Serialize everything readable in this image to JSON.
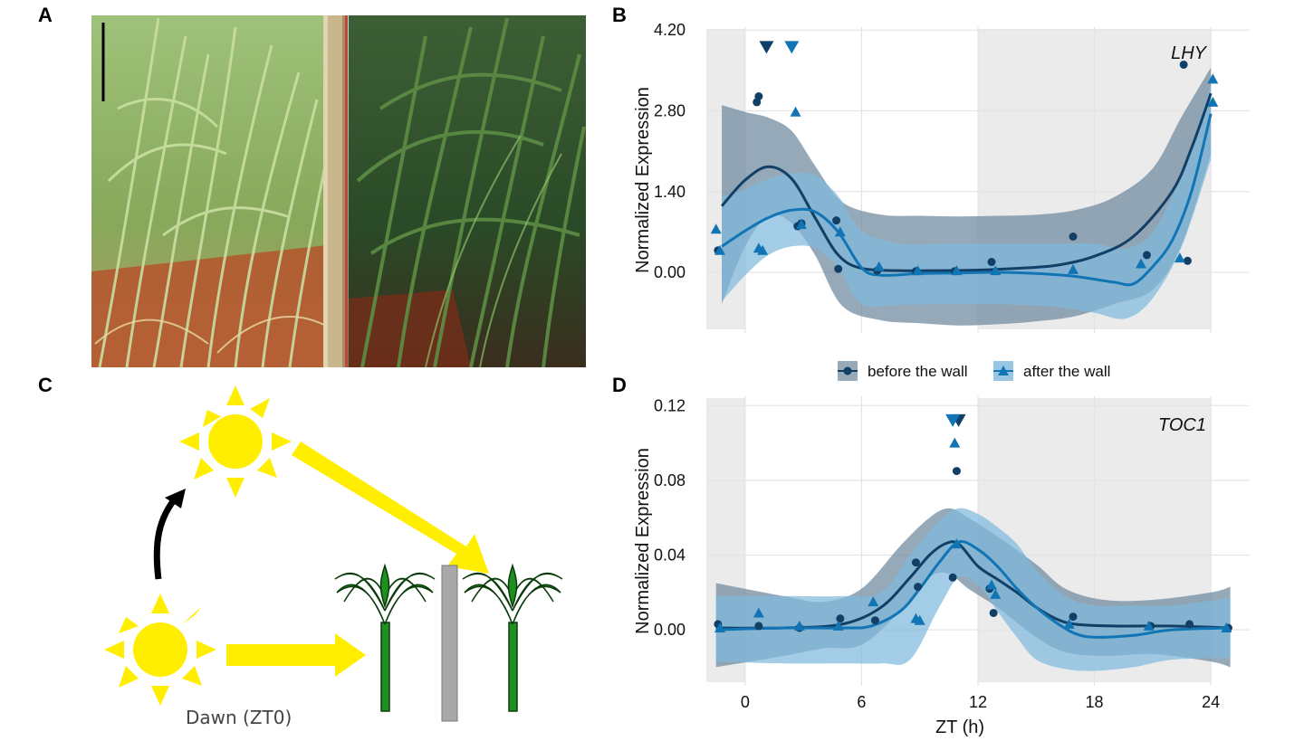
{
  "panels": {
    "a": "A",
    "b": "B",
    "c": "C",
    "d": "D"
  },
  "illustration": {
    "dawn_label": "Dawn (ZT0)"
  },
  "legend": {
    "items": [
      "before the wall",
      "after the wall"
    ]
  },
  "colors": {
    "before": "#123f66",
    "after": "#1175b5",
    "band_before": "#6d889e",
    "band_after": "#7fb8dc",
    "shade": "#ebebeb",
    "sun": "#ffee00",
    "plant": "#1f8f1f",
    "wall": "#a8a8a8"
  },
  "chart_data": [
    {
      "type": "scatter",
      "gene": "LHY",
      "xlabel": "",
      "ylabel": "Normalized Expression",
      "xlim": [
        -2,
        26
      ],
      "ylim": [
        -1.05,
        4.25
      ],
      "xticks": [
        0,
        6,
        12,
        18,
        24
      ],
      "yticks": [
        "0.00",
        "1.40",
        "2.80",
        "4.20"
      ],
      "series": [
        {
          "name": "before the wall",
          "points": [
            [
              -1.4,
              0.38
            ],
            [
              0.6,
              2.95
            ],
            [
              0.7,
              3.05
            ],
            [
              2.7,
              0.8
            ],
            [
              2.9,
              0.85
            ],
            [
              4.7,
              0.9
            ],
            [
              4.8,
              0.06
            ],
            [
              6.8,
              0.03
            ],
            [
              8.8,
              0.02
            ],
            [
              10.8,
              0.02
            ],
            [
              12.7,
              0.18
            ],
            [
              16.9,
              0.62
            ],
            [
              20.7,
              0.3
            ],
            [
              22.6,
              3.6
            ],
            [
              22.8,
              0.2
            ]
          ],
          "censored": [
            [
              1.1,
              3.9
            ]
          ],
          "fit": [
            [
              -1.2,
              1.15
            ],
            [
              0,
              1.6
            ],
            [
              1.2,
              1.83
            ],
            [
              2.4,
              1.62
            ],
            [
              3.6,
              0.95
            ],
            [
              4.8,
              0.3
            ],
            [
              6,
              0.07
            ],
            [
              8,
              0.03
            ],
            [
              10,
              0.03
            ],
            [
              12,
              0.04
            ],
            [
              14,
              0.07
            ],
            [
              16,
              0.12
            ],
            [
              18,
              0.28
            ],
            [
              20,
              0.62
            ],
            [
              22,
              1.4
            ],
            [
              23,
              2.15
            ],
            [
              24,
              3.1
            ]
          ],
          "band_upper": [
            [
              -1.2,
              2.9
            ],
            [
              0,
              2.78
            ],
            [
              1.2,
              2.68
            ],
            [
              2.4,
              2.45
            ],
            [
              3.6,
              1.85
            ],
            [
              5,
              1.22
            ],
            [
              7,
              1.0
            ],
            [
              9,
              0.98
            ],
            [
              11,
              0.97
            ],
            [
              13,
              0.98
            ],
            [
              15,
              1.0
            ],
            [
              17,
              1.08
            ],
            [
              19,
              1.3
            ],
            [
              21,
              1.8
            ],
            [
              22.5,
              2.7
            ],
            [
              24,
              3.55
            ]
          ],
          "band_lower": [
            [
              -1.2,
              -0.55
            ],
            [
              0,
              0.45
            ],
            [
              1.2,
              0.98
            ],
            [
              2.4,
              0.85
            ],
            [
              3.6,
              0.3
            ],
            [
              5,
              -0.58
            ],
            [
              7,
              -0.83
            ],
            [
              9,
              -0.88
            ],
            [
              11,
              -0.92
            ],
            [
              13,
              -0.9
            ],
            [
              15,
              -0.85
            ],
            [
              17,
              -0.76
            ],
            [
              19,
              -0.55
            ],
            [
              21,
              -0.3
            ],
            [
              22.5,
              0.48
            ],
            [
              24,
              2.05
            ]
          ]
        },
        {
          "name": "after the wall",
          "points": [
            [
              -1.5,
              0.75
            ],
            [
              -1.3,
              0.38
            ],
            [
              0.7,
              0.42
            ],
            [
              0.9,
              0.38
            ],
            [
              2.6,
              2.78
            ],
            [
              2.9,
              0.83
            ],
            [
              4.9,
              0.7
            ],
            [
              6.9,
              0.1
            ],
            [
              8.9,
              0.03
            ],
            [
              10.9,
              0.03
            ],
            [
              12.9,
              0.03
            ],
            [
              16.9,
              0.05
            ],
            [
              20.4,
              0.15
            ],
            [
              22.4,
              0.25
            ],
            [
              24.1,
              3.35
            ],
            [
              24.1,
              2.95
            ]
          ],
          "censored": [
            [
              2.4,
              3.9
            ]
          ],
          "fit": [
            [
              -1.2,
              0.45
            ],
            [
              0,
              0.72
            ],
            [
              1.2,
              0.95
            ],
            [
              2.4,
              1.08
            ],
            [
              3.6,
              1.05
            ],
            [
              4.8,
              0.7
            ],
            [
              6,
              0.08
            ],
            [
              7,
              -0.05
            ],
            [
              9,
              -0.02
            ],
            [
              11,
              -0.01
            ],
            [
              13,
              0.0
            ],
            [
              15,
              -0.02
            ],
            [
              17,
              -0.07
            ],
            [
              19,
              -0.17
            ],
            [
              20,
              -0.2
            ],
            [
              21,
              0.1
            ],
            [
              22,
              0.55
            ],
            [
              23,
              1.4
            ],
            [
              24,
              2.75
            ]
          ],
          "band_upper": [
            [
              -1.2,
              1.3
            ],
            [
              0,
              1.45
            ],
            [
              1.2,
              1.62
            ],
            [
              2.4,
              1.72
            ],
            [
              3.6,
              1.68
            ],
            [
              4.8,
              1.32
            ],
            [
              6,
              0.72
            ],
            [
              8,
              0.5
            ],
            [
              10,
              0.5
            ],
            [
              12,
              0.5
            ],
            [
              14,
              0.5
            ],
            [
              16,
              0.5
            ],
            [
              18,
              0.5
            ],
            [
              19.6,
              0.42
            ],
            [
              21,
              0.7
            ],
            [
              22.5,
              1.7
            ],
            [
              24,
              3.25
            ]
          ],
          "band_lower": [
            [
              -1.2,
              -0.5
            ],
            [
              0,
              -0.05
            ],
            [
              1.2,
              0.3
            ],
            [
              2.4,
              0.45
            ],
            [
              3.6,
              0.42
            ],
            [
              4.8,
              0.08
            ],
            [
              6,
              -0.55
            ],
            [
              8,
              -0.56
            ],
            [
              10,
              -0.55
            ],
            [
              12,
              -0.55
            ],
            [
              14,
              -0.56
            ],
            [
              16,
              -0.6
            ],
            [
              18,
              -0.7
            ],
            [
              19.6,
              -0.8
            ],
            [
              21,
              -0.45
            ],
            [
              22.5,
              0.45
            ],
            [
              24,
              1.95
            ]
          ]
        }
      ]
    },
    {
      "type": "scatter",
      "gene": "TOC1",
      "xlabel": "ZT (h)",
      "ylabel": "Normalized Expression",
      "xlim": [
        -2,
        26
      ],
      "ylim": [
        -0.03,
        0.125
      ],
      "xticks": [
        0,
        6,
        12,
        18,
        24
      ],
      "yticks": [
        "0.00",
        "0.04",
        "0.08",
        "0.12"
      ],
      "series": [
        {
          "name": "before the wall",
          "points": [
            [
              -1.4,
              0.003
            ],
            [
              0.7,
              0.002
            ],
            [
              2.8,
              0.001
            ],
            [
              4.9,
              0.006
            ],
            [
              6.7,
              0.005
            ],
            [
              8.8,
              0.036
            ],
            [
              8.9,
              0.023
            ],
            [
              10.7,
              0.028
            ],
            [
              10.9,
              0.085
            ],
            [
              12.6,
              0.022
            ],
            [
              12.8,
              0.009
            ],
            [
              16.9,
              0.007
            ],
            [
              20.9,
              0.002
            ],
            [
              22.9,
              0.003
            ],
            [
              24.9,
              0.001
            ]
          ],
          "censored": [
            [
              11,
              0.112
            ]
          ],
          "fit": [
            [
              -1.5,
              0.001
            ],
            [
              2,
              0.001
            ],
            [
              5,
              0.003
            ],
            [
              7,
              0.012
            ],
            [
              8.5,
              0.028
            ],
            [
              9.5,
              0.04
            ],
            [
              10.3,
              0.046
            ],
            [
              11,
              0.046
            ],
            [
              12,
              0.034
            ],
            [
              13,
              0.027
            ],
            [
              14,
              0.02
            ],
            [
              15,
              0.012
            ],
            [
              16,
              0.006
            ],
            [
              17,
              0.003
            ],
            [
              19,
              0.002
            ],
            [
              22,
              0.002
            ],
            [
              25,
              0.001
            ]
          ],
          "band_upper": [
            [
              -1.5,
              0.025
            ],
            [
              2,
              0.018
            ],
            [
              4,
              0.015
            ],
            [
              6,
              0.022
            ],
            [
              8,
              0.045
            ],
            [
              9.5,
              0.06
            ],
            [
              10.5,
              0.065
            ],
            [
              11.5,
              0.06
            ],
            [
              13,
              0.05
            ],
            [
              15,
              0.035
            ],
            [
              16.5,
              0.022
            ],
            [
              18.5,
              0.016
            ],
            [
              21,
              0.016
            ],
            [
              24,
              0.02
            ],
            [
              25,
              0.023
            ]
          ],
          "band_lower": [
            [
              -1.5,
              -0.02
            ],
            [
              2,
              -0.014
            ],
            [
              4,
              -0.01
            ],
            [
              6,
              -0.008
            ],
            [
              8,
              0.01
            ],
            [
              9.5,
              0.028
            ],
            [
              10.5,
              0.03
            ],
            [
              11.5,
              0.022
            ],
            [
              13,
              0.012
            ],
            [
              15,
              -0.004
            ],
            [
              16.5,
              -0.012
            ],
            [
              18.5,
              -0.014
            ],
            [
              21,
              -0.013
            ],
            [
              24,
              -0.017
            ],
            [
              25,
              -0.02
            ]
          ]
        },
        {
          "name": "after the wall",
          "points": [
            [
              -1.3,
              0.001
            ],
            [
              0.7,
              0.009
            ],
            [
              2.8,
              0.002
            ],
            [
              4.8,
              0.002
            ],
            [
              6.6,
              0.015
            ],
            [
              8.8,
              0.006
            ],
            [
              9,
              0.005
            ],
            [
              10.8,
              0.1
            ],
            [
              10.9,
              0.046
            ],
            [
              12.7,
              0.024
            ],
            [
              12.9,
              0.019
            ],
            [
              16.7,
              0.003
            ],
            [
              20.8,
              0.002
            ],
            [
              24.8,
              0.001
            ]
          ],
          "censored": [
            [
              10.7,
              0.112
            ]
          ],
          "fit": [
            [
              -1.5,
              0.0
            ],
            [
              2,
              0.001
            ],
            [
              5,
              0.001
            ],
            [
              6.5,
              0.002
            ],
            [
              8,
              0.01
            ],
            [
              9,
              0.022
            ],
            [
              10,
              0.036
            ],
            [
              11,
              0.047
            ],
            [
              12,
              0.043
            ],
            [
              13,
              0.034
            ],
            [
              14,
              0.022
            ],
            [
              15,
              0.012
            ],
            [
              16,
              0.004
            ],
            [
              17,
              -0.002
            ],
            [
              18,
              -0.004
            ],
            [
              20,
              -0.003
            ],
            [
              22,
              0.0
            ],
            [
              25,
              0.001
            ]
          ],
          "band_upper": [
            [
              -1.5,
              0.018
            ],
            [
              2,
              0.018
            ],
            [
              5,
              0.018
            ],
            [
              7,
              0.02
            ],
            [
              8.5,
              0.04
            ],
            [
              10,
              0.058
            ],
            [
              11,
              0.065
            ],
            [
              12,
              0.062
            ],
            [
              13,
              0.055
            ],
            [
              14,
              0.046
            ],
            [
              15,
              0.032
            ],
            [
              16.5,
              0.018
            ],
            [
              18,
              0.013
            ],
            [
              20,
              0.013
            ],
            [
              22,
              0.013
            ],
            [
              25,
              0.017
            ]
          ],
          "band_lower": [
            [
              -1.5,
              -0.017
            ],
            [
              2,
              -0.018
            ],
            [
              5,
              -0.018
            ],
            [
              7,
              -0.018
            ],
            [
              8.5,
              -0.016
            ],
            [
              10,
              0.012
            ],
            [
              11,
              0.028
            ],
            [
              12,
              0.024
            ],
            [
              13,
              0.01
            ],
            [
              14,
              -0.004
            ],
            [
              15,
              -0.016
            ],
            [
              16.5,
              -0.021
            ],
            [
              18,
              -0.022
            ],
            [
              20,
              -0.02
            ],
            [
              22,
              -0.016
            ],
            [
              25,
              -0.015
            ]
          ]
        }
      ]
    }
  ]
}
